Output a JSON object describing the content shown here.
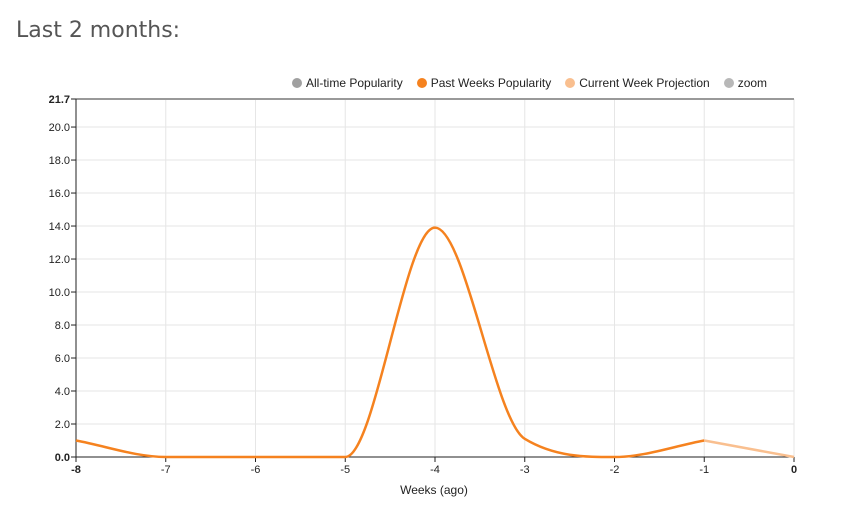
{
  "page": {
    "heading": "Last 2 months:"
  },
  "legend": [
    {
      "label": "All-time Popularity",
      "color": "#a0a0a0",
      "icon": "dot"
    },
    {
      "label": "Past Weeks Popularity",
      "color": "#f5821f",
      "icon": "dot"
    },
    {
      "label": "Current Week Projection",
      "color": "#f9bf8f",
      "icon": "dot"
    },
    {
      "label": "zoom",
      "color": "#b8b8b8",
      "icon": "dot"
    }
  ],
  "chart_data": {
    "type": "line",
    "xlabel": "Weeks (ago)",
    "ylabel": "",
    "xlim": [
      -8,
      0
    ],
    "ylim": [
      0,
      21.7
    ],
    "x_ticks": [
      "-8",
      "-7",
      "-6",
      "-5",
      "-4",
      "-3",
      "-2",
      "-1",
      "0"
    ],
    "y_ticks": [
      "0.0",
      "2.0",
      "4.0",
      "6.0",
      "8.0",
      "10.0",
      "12.0",
      "14.0",
      "16.0",
      "18.0",
      "20.0",
      "21.7"
    ],
    "grid": true,
    "legend_position": "top-right",
    "series": [
      {
        "name": "Past Weeks Popularity",
        "color": "#f5821f",
        "x": [
          -8,
          -7,
          -6,
          -5,
          -4,
          -3,
          -2,
          -1
        ],
        "y": [
          1.0,
          0.0,
          0.0,
          0.0,
          13.9,
          1.1,
          0.0,
          1.0
        ]
      },
      {
        "name": "Current Week Projection",
        "color": "#f9bf8f",
        "x": [
          -1,
          0
        ],
        "y": [
          1.0,
          0.0
        ]
      }
    ]
  }
}
